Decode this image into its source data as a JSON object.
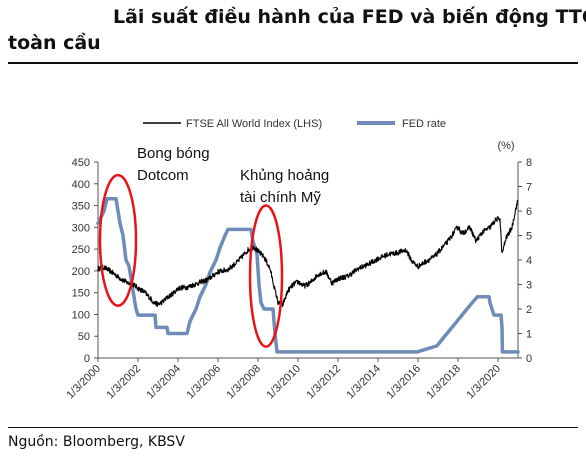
{
  "header": {
    "title_line1": "Lãi suất điều hành của FED và biến động TTCK",
    "title_line2": "toàn cầu"
  },
  "footer": {
    "source": "Nguồn: Bloomberg, KBSV"
  },
  "chart_data": {
    "type": "line",
    "series": [
      {
        "name": "FTSE All World Index (LHS)",
        "axis": "left",
        "color": "#000000",
        "points": [
          [
            2000.0,
            205
          ],
          [
            2000.3,
            208
          ],
          [
            2000.6,
            200
          ],
          [
            2000.9,
            190
          ],
          [
            2001.2,
            180
          ],
          [
            2001.5,
            172
          ],
          [
            2001.8,
            168
          ],
          [
            2002.0,
            160
          ],
          [
            2002.3,
            152
          ],
          [
            2002.6,
            138
          ],
          [
            2002.8,
            127
          ],
          [
            2003.0,
            123
          ],
          [
            2003.2,
            128
          ],
          [
            2003.5,
            140
          ],
          [
            2003.8,
            150
          ],
          [
            2004.0,
            160
          ],
          [
            2004.5,
            163
          ],
          [
            2005.0,
            172
          ],
          [
            2005.5,
            180
          ],
          [
            2006.0,
            198
          ],
          [
            2006.5,
            203
          ],
          [
            2007.0,
            222
          ],
          [
            2007.5,
            248
          ],
          [
            2007.8,
            256
          ],
          [
            2008.0,
            245
          ],
          [
            2008.3,
            232
          ],
          [
            2008.6,
            205
          ],
          [
            2008.8,
            165
          ],
          [
            2009.0,
            128
          ],
          [
            2009.2,
            118
          ],
          [
            2009.5,
            155
          ],
          [
            2009.8,
            170
          ],
          [
            2010.0,
            175
          ],
          [
            2010.3,
            165
          ],
          [
            2010.6,
            172
          ],
          [
            2011.0,
            192
          ],
          [
            2011.4,
            198
          ],
          [
            2011.7,
            172
          ],
          [
            2012.0,
            182
          ],
          [
            2012.5,
            188
          ],
          [
            2013.0,
            205
          ],
          [
            2013.5,
            215
          ],
          [
            2014.0,
            228
          ],
          [
            2014.5,
            238
          ],
          [
            2015.0,
            242
          ],
          [
            2015.4,
            248
          ],
          [
            2015.7,
            222
          ],
          [
            2016.0,
            210
          ],
          [
            2016.4,
            222
          ],
          [
            2016.8,
            232
          ],
          [
            2017.0,
            242
          ],
          [
            2017.5,
            268
          ],
          [
            2018.0,
            302
          ],
          [
            2018.2,
            285
          ],
          [
            2018.6,
            300
          ],
          [
            2018.9,
            268
          ],
          [
            2019.2,
            288
          ],
          [
            2019.6,
            300
          ],
          [
            2019.9,
            318
          ],
          [
            2020.1,
            320
          ],
          [
            2020.2,
            238
          ],
          [
            2020.4,
            275
          ],
          [
            2020.7,
            300
          ],
          [
            2020.9,
            345
          ],
          [
            2021.0,
            362
          ]
        ]
      },
      {
        "name": "FED rate",
        "axis": "right",
        "color": "#6f8bb8",
        "points": [
          [
            2000.0,
            5.5
          ],
          [
            2000.3,
            6.0
          ],
          [
            2000.45,
            6.5
          ],
          [
            2000.9,
            6.5
          ],
          [
            2001.0,
            6.0
          ],
          [
            2001.1,
            5.5
          ],
          [
            2001.25,
            5.0
          ],
          [
            2001.4,
            4.0
          ],
          [
            2001.55,
            3.75
          ],
          [
            2001.7,
            3.0
          ],
          [
            2001.8,
            2.5
          ],
          [
            2001.9,
            2.0
          ],
          [
            2002.0,
            1.75
          ],
          [
            2002.85,
            1.75
          ],
          [
            2002.9,
            1.25
          ],
          [
            2003.45,
            1.25
          ],
          [
            2003.5,
            1.0
          ],
          [
            2004.45,
            1.0
          ],
          [
            2004.6,
            1.5
          ],
          [
            2004.9,
            2.0
          ],
          [
            2005.1,
            2.5
          ],
          [
            2005.4,
            3.0
          ],
          [
            2005.6,
            3.5
          ],
          [
            2005.9,
            4.0
          ],
          [
            2006.1,
            4.5
          ],
          [
            2006.35,
            5.0
          ],
          [
            2006.5,
            5.25
          ],
          [
            2007.65,
            5.25
          ],
          [
            2007.75,
            4.75
          ],
          [
            2007.95,
            4.25
          ],
          [
            2008.05,
            3.0
          ],
          [
            2008.15,
            2.25
          ],
          [
            2008.3,
            2.0
          ],
          [
            2008.75,
            2.0
          ],
          [
            2008.8,
            1.5
          ],
          [
            2008.85,
            1.0
          ],
          [
            2008.95,
            0.25
          ],
          [
            2015.95,
            0.25
          ],
          [
            2016.95,
            0.5
          ],
          [
            2017.2,
            0.75
          ],
          [
            2017.45,
            1.0
          ],
          [
            2017.95,
            1.5
          ],
          [
            2018.2,
            1.75
          ],
          [
            2018.45,
            2.0
          ],
          [
            2018.7,
            2.25
          ],
          [
            2018.97,
            2.5
          ],
          [
            2019.55,
            2.5
          ],
          [
            2019.6,
            2.25
          ],
          [
            2019.7,
            2.0
          ],
          [
            2019.8,
            1.75
          ],
          [
            2020.15,
            1.75
          ],
          [
            2020.2,
            1.25
          ],
          [
            2020.22,
            0.25
          ],
          [
            2021.0,
            0.25
          ]
        ]
      }
    ],
    "y_left": {
      "ticks": [
        0,
        50,
        100,
        150,
        200,
        250,
        300,
        350,
        400,
        450
      ],
      "lim": [
        0,
        450
      ]
    },
    "y_right": {
      "ticks": [
        0,
        1,
        2,
        3,
        4,
        5,
        6,
        7,
        8
      ],
      "lim": [
        0,
        8
      ],
      "unit_label": "(%)"
    },
    "x_axis": {
      "lim": [
        2000,
        2021
      ],
      "ticks": [
        {
          "value": 2000,
          "label": "1/3/2000"
        },
        {
          "value": 2002,
          "label": "1/3/2002"
        },
        {
          "value": 2004,
          "label": "1/3/2004"
        },
        {
          "value": 2006,
          "label": "1/3/2006"
        },
        {
          "value": 2008,
          "label": "1/3/2008"
        },
        {
          "value": 2010,
          "label": "1/3/2010"
        },
        {
          "value": 2012,
          "label": "1/3/2012"
        },
        {
          "value": 2014,
          "label": "1/3/2014"
        },
        {
          "value": 2016,
          "label": "1/3/2016"
        },
        {
          "value": 2018,
          "label": "1/3/2018"
        },
        {
          "value": 2020,
          "label": "1/3/2020"
        }
      ]
    },
    "annotations": [
      {
        "line1": "Bong bóng",
        "line2": "Dotcom",
        "center": [
          2001.0,
          270
        ],
        "radius_x_years": 0.9,
        "radius_y_left": 150
      },
      {
        "line1": "Khủng hoảng",
        "line2": "tài chính Mỹ",
        "center": [
          2008.4,
          188
        ],
        "radius_x_years": 0.8,
        "radius_y_left": 162
      }
    ],
    "annotation_color": "#e8141b",
    "legend_position": "top",
    "grid": false
  }
}
